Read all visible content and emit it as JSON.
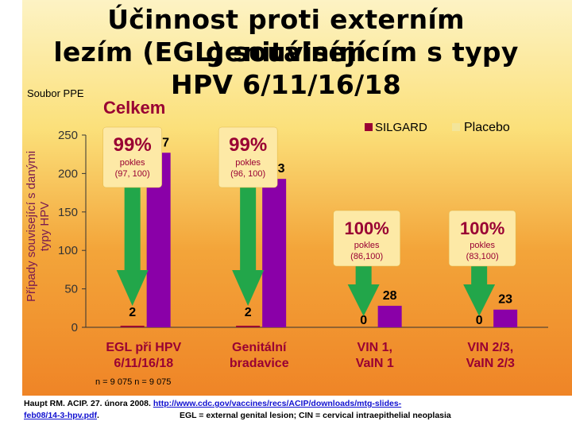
{
  "header": {
    "title_lines": [
      "Účinnost proti externím genitálním",
      "lezím (EGL) souvisejícím s typy",
      "HPV 6/11/16/18"
    ],
    "subset": "Soubor PPE",
    "section": "Celkem"
  },
  "footer": {
    "n_note": "n = 9 075 n = 9 075",
    "citation_prefix": "Haupt RM. ACIP. 27. února 2008.",
    "link_part1": "http://www.cdc.gov/vaccines/recs/ACIP/downloads/mtg-slides-",
    "link_part2": "feb08/14-3-hpv.pdf",
    "period": ".",
    "abbreviations": "EGL = external genital lesion; CIN = cervical intraepithelial neoplasia"
  },
  "colors": {
    "silgard": "#990033",
    "placebo": "#8a00a8",
    "arrow": "#22a64a",
    "legend_placebo_swatch": "#f3e59a"
  },
  "chart_data": {
    "type": "bar",
    "ylabel": "Případy související s danými typy HPV",
    "ylim": [
      0,
      250
    ],
    "yticks": [
      0,
      50,
      100,
      150,
      200,
      250
    ],
    "categories": [
      "EGL při HPV 6/11/16/18",
      "Genitální bradavice",
      "VIN 1, VaIN 1",
      "VIN 2/3, VaIN 2/3"
    ],
    "series": [
      {
        "name": "SILGARD",
        "values": [
          2,
          2,
          0,
          0
        ]
      },
      {
        "name": "Placebo",
        "values": [
          227,
          193,
          28,
          23
        ]
      }
    ],
    "legend_position": "top-right",
    "annotations": [
      {
        "pct": "99%",
        "line1": "pokles",
        "line2": "(97, 100)"
      },
      {
        "pct": "99%",
        "line1": "pokles",
        "line2": "(96, 100)"
      },
      {
        "pct": "100%",
        "line1": "pokles",
        "line2": "(86,100)"
      },
      {
        "pct": "100%",
        "line1": "pokles",
        "line2": "(83,100)"
      }
    ]
  }
}
